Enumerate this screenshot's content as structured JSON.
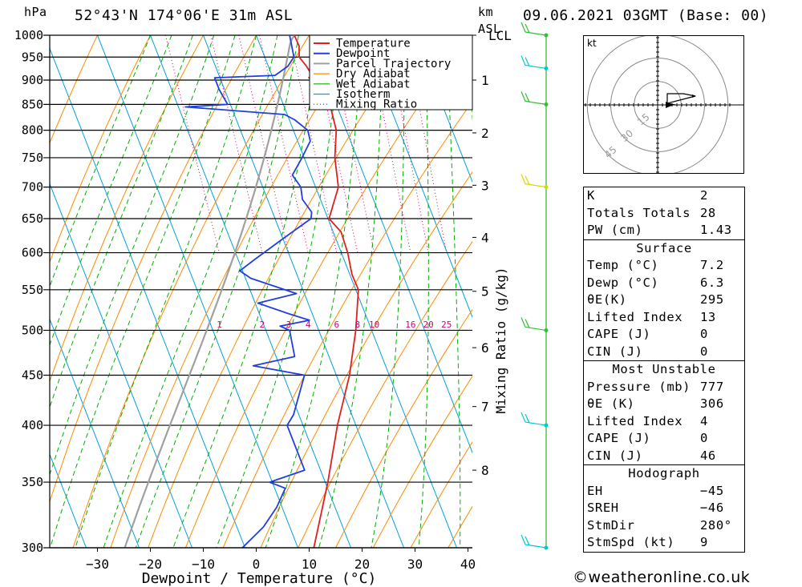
{
  "header": {
    "hpa_label": "hPa",
    "location": "52°43'N  174°06'E  31m  ASL",
    "km_label": "km",
    "asl_label": "ASL",
    "datetime": "09.06.2021  03GMT  (Base: 00)"
  },
  "colors": {
    "temperature": "#e02020",
    "dewpoint": "#1f3fe0",
    "parcel": "#a0a0a0",
    "dry_adiabat": "#ff8a00",
    "wet_adiabat": "#00b000",
    "isotherm": "#00a0e0",
    "mixing_ratio": "#d0007a",
    "wind_cyan": "#00c8d0",
    "wind_green": "#30c030",
    "wind_yellow": "#d8d800"
  },
  "chart_data": {
    "type": "line",
    "title": "52°43'N  174°06'E  31m  ASL",
    "xlabel": "Dewpoint / Temperature (°C)",
    "ylabel": "hPa",
    "right_label": "Mixing Ratio (g/kg)",
    "xlim": [
      -40,
      40
    ],
    "ylim": [
      1000,
      300
    ],
    "x_ticks": [
      "−30",
      "−20",
      "−10",
      "0",
      "10",
      "20",
      "30",
      "40"
    ],
    "x_tick_values": [
      -30,
      -20,
      -10,
      0,
      10,
      20,
      30,
      40
    ],
    "pressure_levels": [
      300,
      350,
      400,
      450,
      500,
      550,
      600,
      650,
      700,
      750,
      800,
      850,
      900,
      950,
      1000
    ],
    "km_ticks": [
      {
        "p": 1000,
        "label": "LCL"
      },
      {
        "p": 900,
        "label": "1"
      },
      {
        "p": 795,
        "label": "2"
      },
      {
        "p": 703,
        "label": "3"
      },
      {
        "p": 622,
        "label": "4"
      },
      {
        "p": 548,
        "label": "5"
      },
      {
        "p": 480,
        "label": "6"
      },
      {
        "p": 418,
        "label": "7"
      },
      {
        "p": 360,
        "label": "8"
      }
    ],
    "mixing_ratio_labels": [
      "1",
      "2",
      "3",
      "4",
      "6",
      "8",
      "10",
      "16",
      "20",
      "25"
    ],
    "mixing_ratio_values": [
      1,
      2,
      3,
      4,
      6,
      8,
      10,
      16,
      20,
      25
    ],
    "legend": [
      "Temperature",
      "Dewpoint",
      "Parcel Trajectory",
      "Dry Adiabat",
      "Wet Adiabat",
      "Isotherm",
      "Mixing Ratio"
    ],
    "series": [
      {
        "name": "Temperature",
        "points": [
          [
            1000,
            7.2
          ],
          [
            975,
            7.3
          ],
          [
            950,
            6.5
          ],
          [
            930,
            7.2
          ],
          [
            910,
            7.6
          ],
          [
            905,
            6.8
          ],
          [
            900,
            7.7
          ],
          [
            880,
            8.3
          ],
          [
            850,
            8.8
          ],
          [
            800,
            8.1
          ],
          [
            750,
            5.8
          ],
          [
            700,
            4.3
          ],
          [
            650,
            0.2
          ],
          [
            630,
            1.5
          ],
          [
            600,
            1.2
          ],
          [
            570,
            0.4
          ],
          [
            550,
            0.5
          ],
          [
            500,
            -3.0
          ],
          [
            450,
            -7.5
          ],
          [
            400,
            -13.5
          ],
          [
            350,
            -19.5
          ],
          [
            300,
            -27.0
          ]
        ]
      },
      {
        "name": "Dewpoint",
        "points": [
          [
            1000,
            6.3
          ],
          [
            950,
            5.5
          ],
          [
            930,
            3.7
          ],
          [
            910,
            0.6
          ],
          [
            905,
            -11.0
          ],
          [
            880,
            -11.0
          ],
          [
            850,
            -10.5
          ],
          [
            845,
            -18.7
          ],
          [
            830,
            -0.5
          ],
          [
            820,
            1.0
          ],
          [
            800,
            2.7
          ],
          [
            780,
            2.4
          ],
          [
            750,
            -0.4
          ],
          [
            720,
            -3.5
          ],
          [
            700,
            -2.8
          ],
          [
            680,
            -3.4
          ],
          [
            660,
            -2.6
          ],
          [
            650,
            -3.2
          ],
          [
            620,
            -10.0
          ],
          [
            590,
            -17.0
          ],
          [
            575,
            -20.5
          ],
          [
            565,
            -19.0
          ],
          [
            545,
            -11.5
          ],
          [
            533,
            -19.5
          ],
          [
            520,
            -14.5
          ],
          [
            512,
            -11.0
          ],
          [
            505,
            -17.0
          ],
          [
            500,
            -15.5
          ],
          [
            470,
            -16.5
          ],
          [
            460,
            -25.0
          ],
          [
            450,
            -16.0
          ],
          [
            410,
            -21.0
          ],
          [
            400,
            -23.0
          ],
          [
            360,
            -23.0
          ],
          [
            350,
            -30.5
          ],
          [
            345,
            -28.0
          ],
          [
            330,
            -31.0
          ],
          [
            315,
            -35.0
          ],
          [
            300,
            -40.5
          ]
        ]
      }
    ],
    "wind_barbs": [
      {
        "p": 300,
        "color": "wind_cyan"
      },
      {
        "p": 400,
        "color": "wind_cyan"
      },
      {
        "p": 500,
        "color": "wind_green"
      },
      {
        "p": 700,
        "color": "wind_yellow"
      },
      {
        "p": 850,
        "color": "wind_green"
      },
      {
        "p": 925,
        "color": "wind_cyan"
      },
      {
        "p": 1000,
        "color": "wind_green"
      }
    ]
  },
  "hodograph": {
    "unit_label": "kt",
    "ring_labels": [
      "15",
      "30",
      "45"
    ],
    "ring_values_kt": [
      15,
      30,
      45
    ]
  },
  "indices": [
    {
      "key": "K",
      "value": "2"
    },
    {
      "key": "Totals Totals",
      "value": "28"
    },
    {
      "key": "PW (cm)",
      "value": "1.43"
    }
  ],
  "surface": {
    "title": "Surface",
    "rows": [
      {
        "key": "Temp (°C)",
        "value": "7.2"
      },
      {
        "key": "Dewp (°C)",
        "value": "6.3"
      },
      {
        "key": "θE(K)",
        "value": "295"
      },
      {
        "key": "Lifted Index",
        "value": "13"
      },
      {
        "key": "CAPE (J)",
        "value": "0"
      },
      {
        "key": "CIN (J)",
        "value": "0"
      }
    ]
  },
  "most_unstable": {
    "title": "Most Unstable",
    "rows": [
      {
        "key": "Pressure (mb)",
        "value": "777"
      },
      {
        "key": "θE (K)",
        "value": "306"
      },
      {
        "key": "Lifted Index",
        "value": "4"
      },
      {
        "key": "CAPE (J)",
        "value": "0"
      },
      {
        "key": "CIN (J)",
        "value": "46"
      }
    ]
  },
  "hodograph_table": {
    "title": "Hodograph",
    "rows": [
      {
        "key": "EH",
        "value": "−45"
      },
      {
        "key": "SREH",
        "value": "−46"
      },
      {
        "key": "StmDir",
        "value": "280°"
      },
      {
        "key": "StmSpd (kt)",
        "value": "9"
      }
    ]
  },
  "copyright": "©weatheronline.co.uk"
}
